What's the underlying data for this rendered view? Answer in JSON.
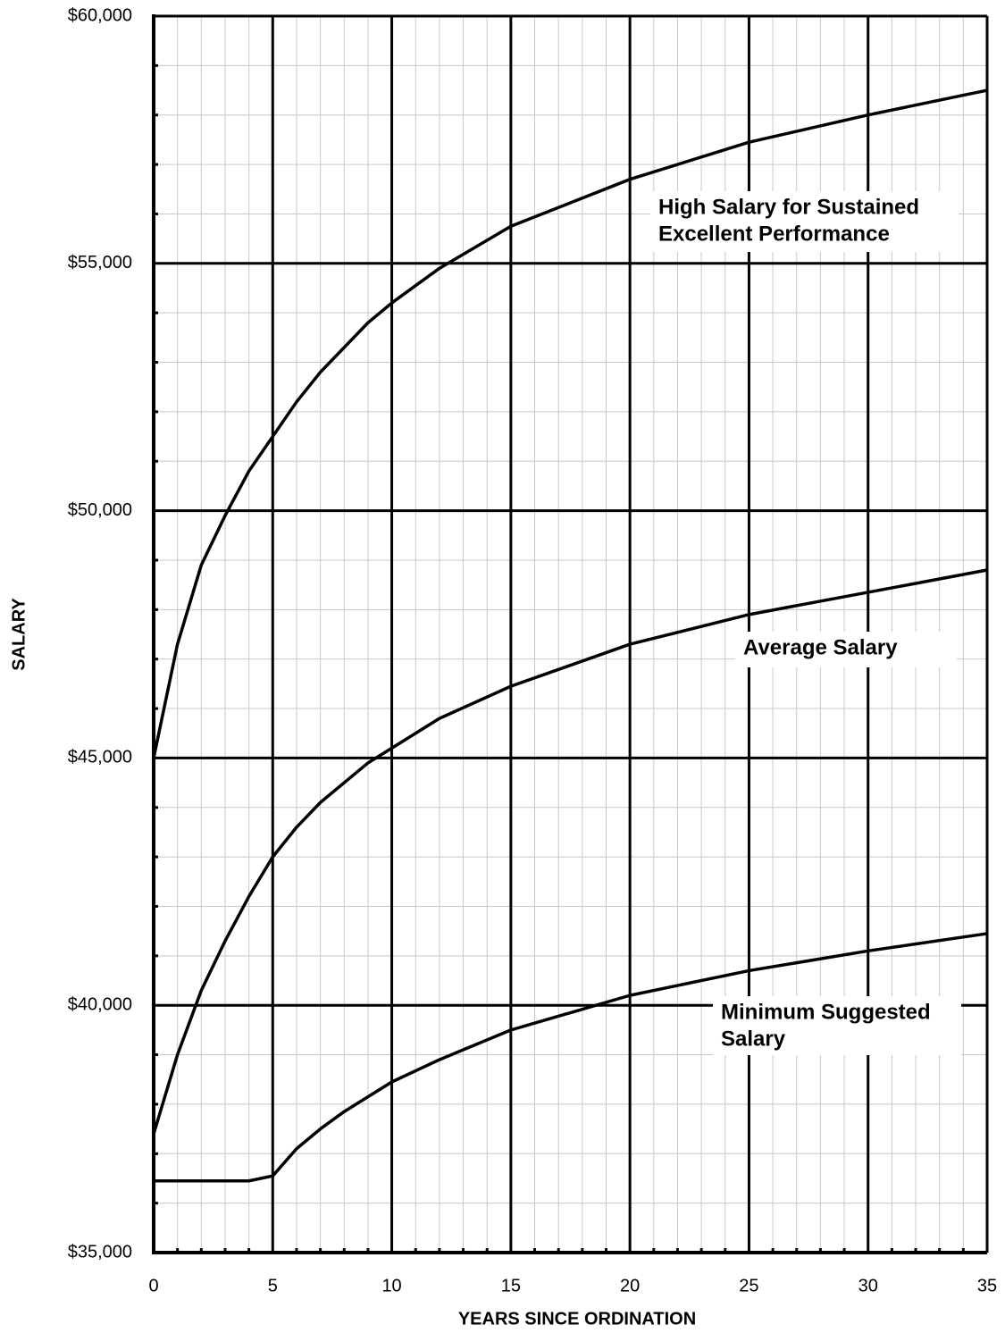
{
  "chart_data": {
    "type": "line",
    "x_label": "YEARS SINCE ORDINATION",
    "y_label": "SALARY",
    "x": [
      0,
      1,
      2,
      3,
      4,
      5,
      6,
      7,
      8,
      9,
      10,
      12,
      15,
      20,
      25,
      30,
      35
    ],
    "series": [
      {
        "name": "High Salary for Sustained Excellent Performance",
        "color": "#000000",
        "values": [
          45000,
          47300,
          48900,
          49900,
          50800,
          51500,
          52200,
          52800,
          53300,
          53800,
          54200,
          54900,
          55750,
          56700,
          57450,
          58000,
          58500
        ]
      },
      {
        "name": "Average Salary",
        "color": "#000000",
        "values": [
          37400,
          39000,
          40300,
          41300,
          42200,
          43000,
          43600,
          44100,
          44500,
          44900,
          45200,
          45800,
          46450,
          47300,
          47900,
          48350,
          48800
        ]
      },
      {
        "name": "Minimum Suggested Salary",
        "color": "#000000",
        "values": [
          36450,
          36450,
          36450,
          36450,
          36450,
          36550,
          37100,
          37500,
          37850,
          38150,
          38450,
          38900,
          39500,
          40200,
          40700,
          41100,
          41450
        ]
      }
    ],
    "annotations": [
      [
        "High Salary for Sustained",
        "Excellent Performance"
      ],
      [
        "Average Salary"
      ],
      [
        "Minimum Suggested",
        "Salary"
      ]
    ],
    "xlim": [
      0,
      35
    ],
    "xticks": [
      0,
      5,
      10,
      15,
      20,
      25,
      30,
      35
    ],
    "ylim": [
      35000,
      60000
    ],
    "yticks": [
      {
        "value": 35000,
        "label": "$35,000"
      },
      {
        "value": 40000,
        "label": "$40,000"
      },
      {
        "value": 45000,
        "label": "$45,000"
      },
      {
        "value": 50000,
        "label": "$50,000"
      },
      {
        "value": 55000,
        "label": "$55,000"
      },
      {
        "value": 60000,
        "label": "$60,000"
      }
    ],
    "grid": true,
    "minor_grid": true
  }
}
